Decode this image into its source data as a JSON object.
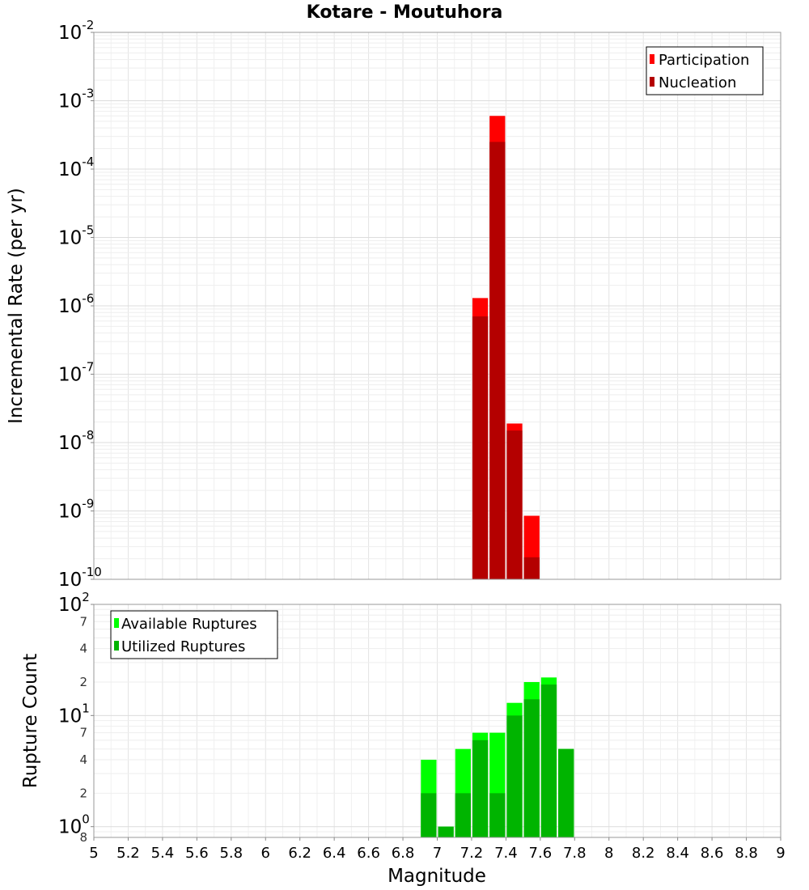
{
  "chart_data": [
    {
      "type": "bar",
      "title": "Kotare - Moutuhora",
      "xlabel": "",
      "ylabel": "Incremental Rate (per yr)",
      "yscale": "log",
      "ylim": [
        1e-10,
        0.01
      ],
      "xlim": [
        5,
        9
      ],
      "bar_width": 0.1,
      "y_tick_exponents": [
        "-10",
        "-9",
        "-8",
        "-7",
        "-6",
        "-5",
        "-4",
        "-3",
        "-2"
      ],
      "y_tick_base": "10",
      "legend_position": "top-right",
      "series": [
        {
          "name": "Participation",
          "color": "#ff0000",
          "x": [
            7.25,
            7.35,
            7.45,
            7.55
          ],
          "values": [
            1.3e-06,
            0.0006,
            1.9e-08,
            8.5e-10
          ]
        },
        {
          "name": "Nucleation",
          "color": "#b40000",
          "x": [
            7.25,
            7.35,
            7.45,
            7.55
          ],
          "values": [
            7e-07,
            0.00025,
            1.5e-08,
            2.1e-10
          ]
        }
      ]
    },
    {
      "type": "bar",
      "title": "",
      "xlabel": "Magnitude",
      "ylabel": "Rupture Count",
      "yscale": "log",
      "ylim": [
        0.8,
        100
      ],
      "xlim": [
        5,
        9
      ],
      "bar_width": 0.1,
      "y_major_ticks": [
        {
          "value": 1,
          "base": "10",
          "exp": "0"
        },
        {
          "value": 10,
          "base": "10",
          "exp": "1"
        },
        {
          "value": 100,
          "base": "10",
          "exp": "2"
        }
      ],
      "y_minor_ticks": [
        {
          "value": 0.8,
          "label": "8"
        },
        {
          "value": 2,
          "label": "2"
        },
        {
          "value": 4,
          "label": "4"
        },
        {
          "value": 7,
          "label": "7"
        },
        {
          "value": 20,
          "label": "2"
        },
        {
          "value": 40,
          "label": "4"
        },
        {
          "value": 70,
          "label": "7"
        }
      ],
      "x_tick_labels": [
        "5",
        "5.2",
        "5.4",
        "5.6",
        "5.8",
        "6",
        "6.2",
        "6.4",
        "6.6",
        "6.8",
        "7",
        "7.2",
        "7.4",
        "7.6",
        "7.8",
        "8",
        "8.2",
        "8.4",
        "8.6",
        "8.8",
        "9"
      ],
      "legend_position": "top-left",
      "series": [
        {
          "name": "Available Ruptures",
          "color": "#00ff00",
          "x": [
            6.95,
            7.05,
            7.15,
            7.25,
            7.35,
            7.45,
            7.55,
            7.65,
            7.75
          ],
          "values": [
            4,
            1,
            5,
            7,
            7,
            13,
            20,
            22,
            5
          ]
        },
        {
          "name": "Utilized Ruptures",
          "color": "#00b400",
          "x": [
            6.95,
            7.05,
            7.15,
            7.25,
            7.35,
            7.45,
            7.55,
            7.65,
            7.75
          ],
          "values": [
            2,
            1,
            2,
            6,
            2,
            10,
            14,
            19,
            5
          ]
        }
      ]
    }
  ]
}
